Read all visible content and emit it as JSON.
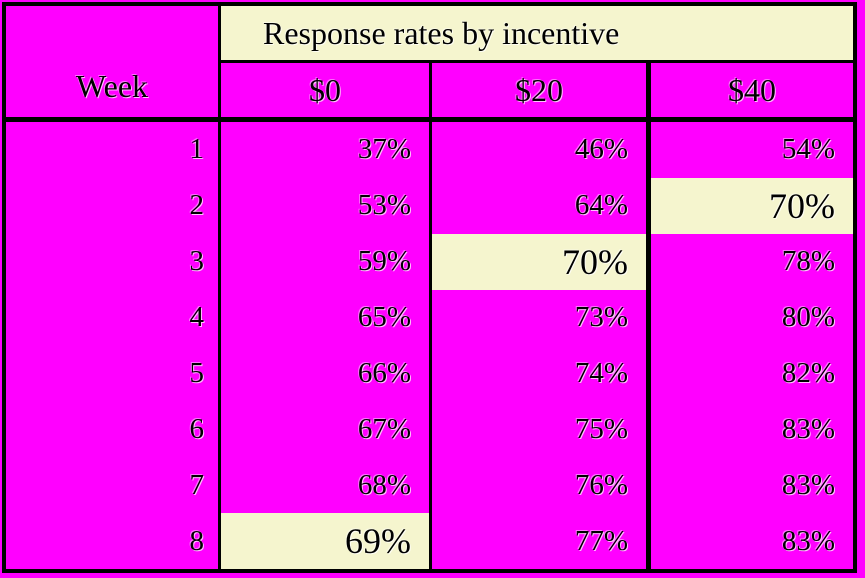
{
  "chart_data": {
    "type": "table",
    "title": "Response rates by incentive",
    "row_header_label": "Week",
    "categories": [
      1,
      2,
      3,
      4,
      5,
      6,
      7,
      8
    ],
    "series": [
      {
        "name": "$0",
        "values_pct": [
          37,
          53,
          59,
          65,
          66,
          67,
          68,
          69
        ]
      },
      {
        "name": "$20",
        "values_pct": [
          46,
          64,
          70,
          73,
          74,
          75,
          76,
          77
        ]
      },
      {
        "name": "$40",
        "values_pct": [
          54,
          70,
          78,
          80,
          82,
          83,
          83,
          83
        ]
      }
    ],
    "value_suffix": "%",
    "highlighted_cells": [
      {
        "week": 2,
        "series": "$40",
        "value_pct": 70
      },
      {
        "week": 3,
        "series": "$20",
        "value_pct": 70
      },
      {
        "week": 8,
        "series": "$0",
        "value_pct": 69
      }
    ],
    "layout": {
      "grid": "on",
      "legend_position": "none",
      "numbers_alignment": "right"
    }
  },
  "colors": {
    "table_fill": "#FF00FF",
    "highlight_fill": "#F5F5CE",
    "border": "#000000",
    "text": "#000000"
  }
}
